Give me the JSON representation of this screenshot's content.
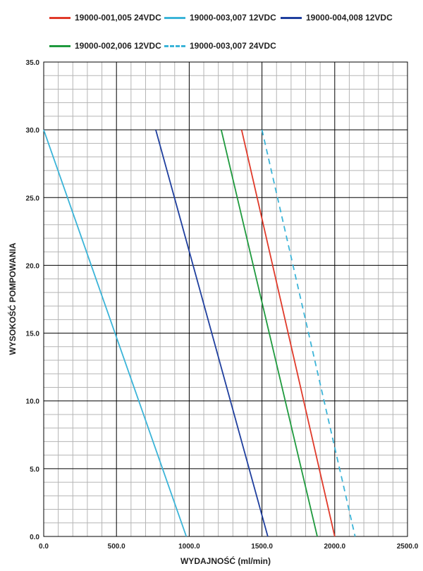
{
  "chart_data": {
    "type": "line",
    "title": "",
    "xlabel": "WYDAJNOŚĆ (ml/min)",
    "ylabel": "WYSOKOŚĆ POMPOWANIA",
    "xlim": [
      0,
      2500
    ],
    "ylim": [
      0,
      35
    ],
    "x_ticks": [
      "0.0",
      "500.0",
      "1000.0",
      "1500.0",
      "2000.0",
      "2500.0"
    ],
    "y_ticks": [
      "0.0",
      "5.0",
      "10.0",
      "15.0",
      "20.0",
      "25.0",
      "30.0",
      "35.0"
    ],
    "grid": true,
    "legend_position": "top",
    "series": [
      {
        "name": "19000-001,005 24VDC",
        "color": "#e03a2a",
        "dash": "solid",
        "points": [
          [
            1360,
            30
          ],
          [
            2000,
            0
          ]
        ]
      },
      {
        "name": "19000-003,007 12VDC",
        "color": "#3bb4d8",
        "dash": "solid",
        "points": [
          [
            0,
            30
          ],
          [
            980,
            0
          ]
        ]
      },
      {
        "name": "19000-004,008 12VDC",
        "color": "#1f3f9e",
        "dash": "solid",
        "points": [
          [
            770,
            30
          ],
          [
            1540,
            0
          ]
        ]
      },
      {
        "name": "19000-002,006 12VDC",
        "color": "#1f9a3e",
        "dash": "solid",
        "points": [
          [
            1220,
            30
          ],
          [
            1880,
            0
          ]
        ]
      },
      {
        "name": "19000-003,007 24VDC",
        "color": "#3bb4d8",
        "dash": "dashed",
        "points": [
          [
            1500,
            30
          ],
          [
            2140,
            0
          ]
        ]
      }
    ]
  }
}
